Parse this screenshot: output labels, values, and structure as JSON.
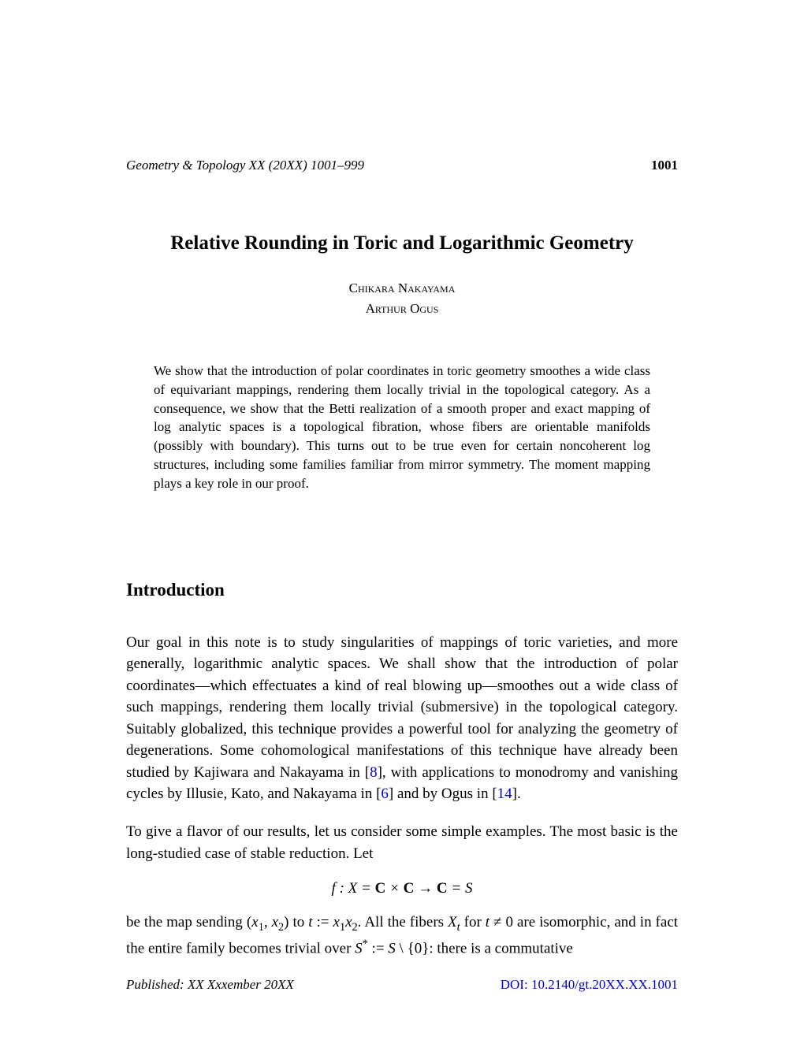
{
  "header": {
    "journal": "Geometry & Topology XX (20XX) 1001–999",
    "page_number": "1001"
  },
  "title": "Relative Rounding in Toric and Logarithmic Geometry",
  "authors": [
    "Chikara Nakayama",
    "Arthur Ogus"
  ],
  "abstract": "We show that the introduction of polar coordinates in toric geometry smoothes a wide class of equivariant mappings, rendering them locally trivial in the topological category. As a consequence, we show that the Betti realization of a smooth proper and exact mapping of log analytic spaces is a topological fibration, whose fibers are orientable manifolds (possibly with boundary). This turns out to be true even for certain noncoherent log structures, including some families familiar from mirror symmetry. The moment mapping plays a key role in our proof.",
  "section_heading": "Introduction",
  "paragraphs": {
    "p1_part1": "Our goal in this note is to study singularities of mappings of toric varieties, and more generally, logarithmic analytic spaces. We shall show that the introduction of polar coordinates—which effectuates a kind of real blowing up—smoothes out a wide class of such mappings, rendering them locally trivial (submersive) in the topological category. Suitably globalized, this technique provides a powerful tool for analyzing the geometry of degenerations. Some cohomological manifestations of this technique have already been studied by Kajiwara and Nakayama in [",
    "cite1": "8",
    "p1_part2": "], with applications to monodromy and vanishing cycles by Illusie, Kato, and Nakayama in [",
    "cite2": "6",
    "p1_part3": "] and by Ogus in [",
    "cite3": "14",
    "p1_part4": "].",
    "p2": "To give a flavor of our results, let us consider some simple examples. The most basic is the long-studied case of stable reduction. Let",
    "p3_part1": "be the map sending (",
    "p3_x1x2": "x",
    "p3_part2": ") to ",
    "p3_part3": ". All the fibers ",
    "p3_part4": " for ",
    "p3_part5": " ≠ 0 are isomorphic, and in fact the entire family becomes trivial over ",
    "p3_part6": " \\ {0}: there is a commutative"
  },
  "equation": {
    "f_label": "f",
    "X_label": "X",
    "C_label": "C",
    "S_label": "S"
  },
  "footer": {
    "published": "Published: XX Xxxember 20XX",
    "doi": "DOI: 10.2140/gt.20XX.XX.1001"
  },
  "colors": {
    "text": "#000000",
    "link": "#0000cc",
    "background": "#ffffff"
  },
  "typography": {
    "body_fontsize": 19,
    "title_fontsize": 25,
    "heading_fontsize": 23,
    "header_fontsize": 17,
    "abstract_fontsize": 17,
    "footer_fontsize": 17
  }
}
